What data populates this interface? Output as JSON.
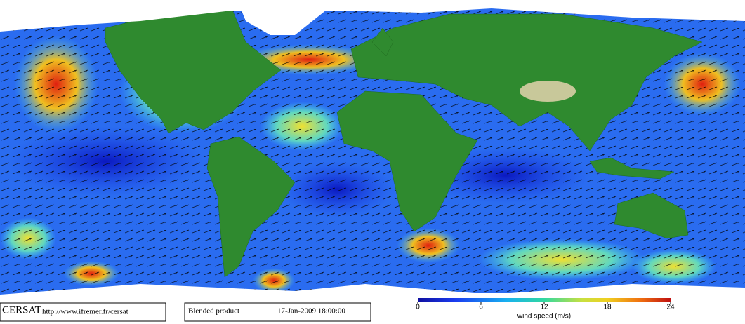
{
  "legend": {
    "org": "CERSAT",
    "url": "http://www.ifremer.fr/cersat",
    "product": "Blended product",
    "date": "17-Jan-2009 18:00:00"
  },
  "colorbar": {
    "range": [
      0,
      24
    ],
    "ticks": [
      0,
      6,
      12,
      18,
      24
    ],
    "label": "wind speed (m/s)"
  }
}
